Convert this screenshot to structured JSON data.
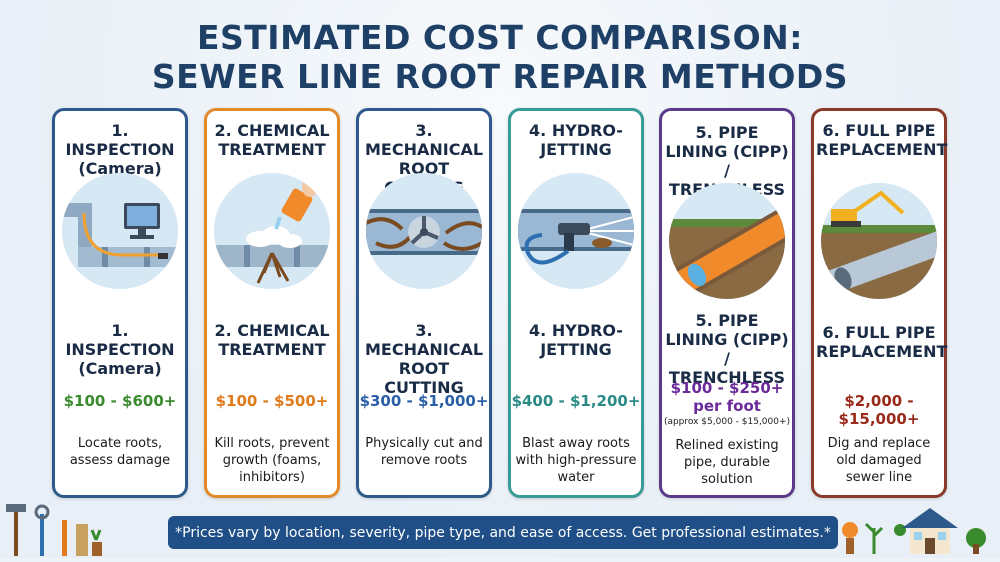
{
  "title": {
    "line1": "ESTIMATED COST COMPARISON:",
    "line2": "SEWER LINE ROOT REPAIR METHODS"
  },
  "cards": [
    {
      "header": "1. INSPECTION (Camera)",
      "name": "1. INSPECTION (Camera)",
      "price": "$100 - $600+",
      "price_note": "",
      "description": "Locate roots, assess damage",
      "border_color": "#2d5a8a",
      "price_color": "#3a8a2e",
      "icon": "camera-inspection-icon"
    },
    {
      "header": "2. CHEMICAL TREATMENT",
      "name": "2. CHEMICAL TREATMENT",
      "price": "$100 - $500+",
      "price_note": "",
      "description": "Kill roots, prevent growth (foams, inhibitors)",
      "border_color": "#e08a2a",
      "price_color": "#e07a1a",
      "icon": "chemical-treatment-icon"
    },
    {
      "header": "3. MECHANICAL ROOT CUTTING",
      "name": "3. MECHANICAL ROOT CUTTING",
      "price": "$300 - $1,000+",
      "price_note": "",
      "description": "Physically cut and remove roots",
      "border_color": "#2d5a8a",
      "price_color": "#2a5fa8",
      "icon": "root-cutter-icon"
    },
    {
      "header": "4. HYDRO-JETTING",
      "name": "4. HYDRO-JETTING",
      "price": "$400 - $1,200+",
      "price_note": "",
      "description": "Blast away roots with high-pressure water",
      "border_color": "#3a9a96",
      "price_color": "#2a8a86",
      "icon": "hydro-jet-icon"
    },
    {
      "header": "5. PIPE LINING (CIPP) / TRENCHLESS",
      "name": "5. PIPE LINING (CIPP) / TRENCHLESS",
      "price": "$100 - $250+ per foot",
      "price_note": "(approx $5,000 - $15,000+)",
      "description": "Relined existing pipe, durable solution",
      "border_color": "#5b3a8a",
      "price_color": "#6a2a9a",
      "icon": "pipe-lining-icon"
    },
    {
      "header": "6. FULL PIPE REPLACEMENT",
      "name": "6. FULL PIPE REPLACEMENT",
      "price": "$2,000 - $15,000+",
      "price_note": "",
      "description": "Dig and replace old damaged sewer line",
      "border_color": "#8a3a2a",
      "price_color": "#9a2a1a",
      "icon": "excavator-icon"
    }
  ],
  "footer": {
    "text": "*Prices vary by location, severity, pipe type, and ease of access. Get professional estimates.*"
  }
}
